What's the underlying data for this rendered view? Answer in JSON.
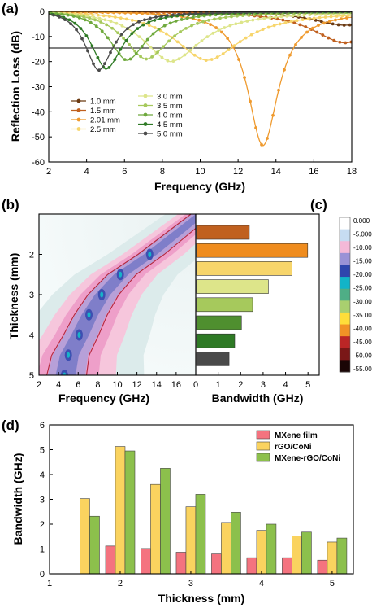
{
  "chart_data": [
    {
      "panel": "(a)",
      "type": "line",
      "xlabel": "Frequency (GHz)",
      "ylabel": "Reflection Loss (dB)",
      "xlim": [
        2,
        18
      ],
      "ylim": [
        -60,
        0
      ],
      "xticks": [
        2,
        4,
        6,
        8,
        10,
        12,
        14,
        16,
        18
      ],
      "yticks": [
        0,
        -10,
        -20,
        -30,
        -40,
        -50,
        -60
      ],
      "reference_line": -10,
      "legend_position": "bottom-left",
      "series": [
        {
          "name": "1.0 mm",
          "color": "#6b3a12",
          "fmin": 17.6,
          "rlmin": -5.5,
          "width": 2.2
        },
        {
          "name": "1.5 mm",
          "color": "#c0601f",
          "fmin": 17.6,
          "rlmin": -12.5,
          "width": 2.2
        },
        {
          "name": "2.01 mm",
          "color": "#ef9a2e",
          "fmin": 13.3,
          "rlmin": -53.5,
          "width": 1.0
        },
        {
          "name": "2.5 mm",
          "color": "#f7d56b",
          "fmin": 10.3,
          "rlmin": -19.5,
          "width": 2.3
        },
        {
          "name": "3.0 mm",
          "color": "#dde58a",
          "fmin": 8.4,
          "rlmin": -20.0,
          "width": 2.0
        },
        {
          "name": "3.5 mm",
          "color": "#a6c95c",
          "fmin": 7.1,
          "rlmin": -19.0,
          "width": 1.6
        },
        {
          "name": "4.0 mm",
          "color": "#6fa93d",
          "fmin": 6.1,
          "rlmin": -19.5,
          "width": 1.3
        },
        {
          "name": "4.5 mm",
          "color": "#2e7a25",
          "fmin": 5.0,
          "rlmin": -23.0,
          "width": 1.1
        },
        {
          "name": "5.0 mm",
          "color": "#4a4a4a",
          "fmin": 4.6,
          "rlmin": -23.5,
          "width": 1.0
        }
      ]
    },
    {
      "panel": "(b)",
      "type": "heatmap",
      "xlabel": "Frequency (GHz)",
      "ylabel": "Thickness (mm)",
      "xlim": [
        2,
        18
      ],
      "ylim": [
        1.0,
        5.0
      ],
      "xticks": [
        2,
        4,
        6,
        8,
        10,
        12,
        14,
        16
      ],
      "yticks": [
        2,
        3,
        4,
        5
      ],
      "resonance_points": [
        {
          "thickness": 2.0,
          "freq": 13.3
        },
        {
          "thickness": 2.5,
          "freq": 10.3
        },
        {
          "thickness": 3.0,
          "freq": 8.4
        },
        {
          "thickness": 3.5,
          "freq": 7.1
        },
        {
          "thickness": 4.0,
          "freq": 6.1
        },
        {
          "thickness": 4.5,
          "freq": 5.0
        },
        {
          "thickness": 5.0,
          "freq": 4.6
        }
      ]
    },
    {
      "panel": "(c)",
      "type": "bar",
      "orientation": "horizontal",
      "xlabel": "Bandwidth (GHz)",
      "xlim": [
        0,
        5.5
      ],
      "xticks": [
        0,
        1,
        2,
        3,
        4,
        5
      ],
      "categories": [
        "1.5 mm",
        "2.01 mm",
        "2.5 mm",
        "3.0 mm",
        "3.5 mm",
        "4.0 mm",
        "4.5 mm",
        "5.0 mm"
      ],
      "values": [
        2.35,
        4.95,
        4.25,
        3.2,
        2.5,
        2.0,
        1.7,
        1.45
      ],
      "colors": [
        "#c0601f",
        "#ef8c1e",
        "#f7d56b",
        "#dde58a",
        "#a6c95c",
        "#4f8f2f",
        "#2e7a25",
        "#4a4a4a"
      ],
      "colorbar": {
        "ticks": [
          "0.000",
          "-5.000",
          "-10.00",
          "-15.00",
          "-20.00",
          "-25.00",
          "-30.00",
          "-35.00",
          "-40.00",
          "-45.00",
          "-50.00",
          "-55.00"
        ],
        "colors": [
          "#ffffff",
          "#c6dcf2",
          "#f4b9d8",
          "#9a92d6",
          "#2f46ad",
          "#12b4c8",
          "#4fae86",
          "#a9cf6f",
          "#ffde3a",
          "#f19226",
          "#bb2626",
          "#7a1717",
          "#1a0505"
        ]
      }
    },
    {
      "panel": "(d)",
      "type": "bar",
      "xlabel": "Thickness (mm)",
      "ylabel": "Bandwidth (GHz)",
      "xlim": [
        1,
        5.3
      ],
      "ylim": [
        0,
        6
      ],
      "xticks": [
        1,
        2,
        3,
        4,
        5
      ],
      "yticks": [
        0,
        1,
        2,
        3,
        4,
        5,
        6
      ],
      "x": [
        1.5,
        2.0,
        2.5,
        3.0,
        3.5,
        4.0,
        4.5,
        5.0
      ],
      "legend_position": "top-right",
      "series": [
        {
          "name": "MXene film",
          "color": "#f4737f",
          "values": [
            null,
            1.12,
            1.02,
            0.87,
            0.8,
            0.65,
            0.65,
            0.55
          ]
        },
        {
          "name": "rGO/CoNi",
          "color": "#fad35f",
          "values": [
            3.03,
            5.13,
            3.6,
            2.7,
            2.07,
            1.75,
            1.52,
            1.28
          ]
        },
        {
          "name": "MXene-rGO/CoNi",
          "color": "#8cc04c",
          "values": [
            2.32,
            4.95,
            4.25,
            3.2,
            2.48,
            2.0,
            1.68,
            1.44
          ]
        }
      ]
    }
  ]
}
